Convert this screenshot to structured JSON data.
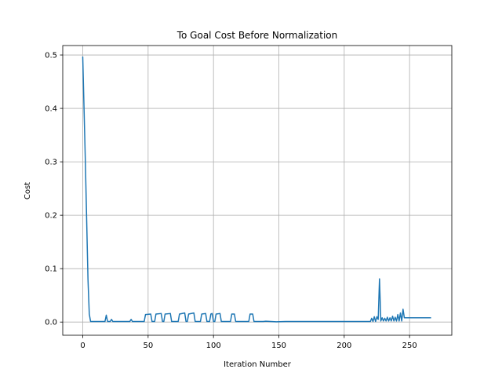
{
  "chart_data": {
    "type": "line",
    "title": "To Goal Cost Before Normalization",
    "xlabel": "Iteration Number",
    "ylabel": "Cost",
    "xlim": [
      -15.3,
      282.3
    ],
    "ylim": [
      -0.0247,
      0.5177
    ],
    "xticks": [
      0,
      50,
      100,
      150,
      200,
      250
    ],
    "yticks": [
      0.0,
      0.1,
      0.2,
      0.3,
      0.4,
      0.5
    ],
    "xtick_labels": [
      "0",
      "50",
      "100",
      "150",
      "200",
      "250"
    ],
    "ytick_labels": [
      "0.0",
      "0.1",
      "0.2",
      "0.3",
      "0.4",
      "0.5"
    ],
    "grid": true,
    "legend": "none",
    "series": [
      {
        "color": "#1f77b4",
        "x": [
          0,
          2,
          4,
          5,
          6,
          17,
          18,
          19,
          21,
          22,
          23,
          36,
          37,
          38,
          47,
          48,
          52,
          53,
          55,
          56,
          60,
          61,
          62,
          63,
          67,
          68,
          73,
          74,
          78,
          79,
          80,
          81,
          85,
          86,
          90,
          91,
          94,
          95,
          97,
          98,
          99,
          100,
          101,
          102,
          105,
          106,
          113,
          114,
          116,
          117,
          127,
          128,
          130,
          131,
          132,
          138,
          140,
          148,
          155,
          200,
          220,
          221,
          222,
          223,
          224,
          225,
          226,
          227,
          228,
          229,
          230,
          231,
          232,
          233,
          234,
          235,
          236,
          237,
          238,
          239,
          240,
          241,
          242,
          243,
          244,
          245,
          246,
          266
        ],
        "y": [
          0.496,
          0.3,
          0.08,
          0.015,
          0.001,
          0.001,
          0.013,
          0.001,
          0.001,
          0.005,
          0.001,
          0.001,
          0.005,
          0.001,
          0.001,
          0.014,
          0.015,
          0.001,
          0.001,
          0.015,
          0.016,
          0.001,
          0.001,
          0.015,
          0.016,
          0.001,
          0.001,
          0.015,
          0.017,
          0.001,
          0.001,
          0.015,
          0.017,
          0.001,
          0.001,
          0.015,
          0.016,
          0.001,
          0.001,
          0.015,
          0.016,
          0.001,
          0.001,
          0.015,
          0.016,
          0.001,
          0.001,
          0.015,
          0.015,
          0.001,
          0.001,
          0.015,
          0.015,
          0.001,
          0.001,
          0.001,
          0.0015,
          0.0005,
          0.001,
          0.001,
          0.001,
          0.007,
          0.001,
          0.01,
          0.001,
          0.01,
          0.005,
          0.081,
          0.002,
          0.008,
          0.002,
          0.007,
          0.002,
          0.009,
          0.002,
          0.008,
          0.002,
          0.011,
          0.002,
          0.009,
          0.002,
          0.014,
          0.002,
          0.017,
          0.002,
          0.024,
          0.008,
          0.008
        ]
      }
    ]
  }
}
